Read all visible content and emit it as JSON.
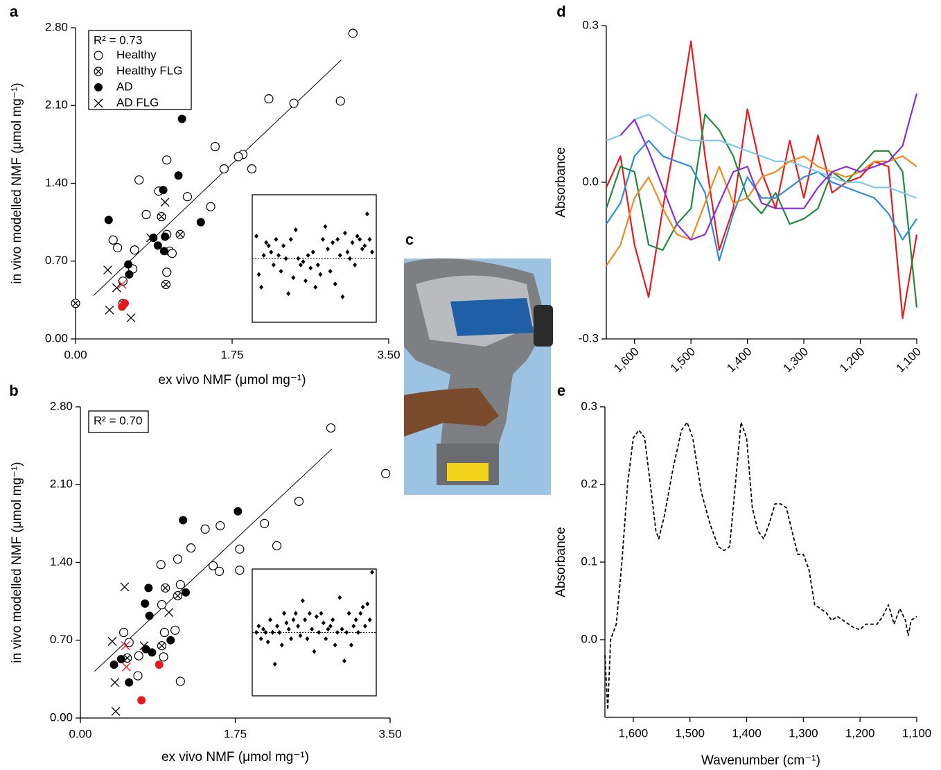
{
  "chart_data": [
    {
      "type": "scatter",
      "panel_label": "a",
      "annotation": "R² = 0.73",
      "legend": true,
      "xlabel": "ex vivo NMF (μmol mg⁻¹)",
      "ylabel": "in vivo modelled NMF (μmol mg⁻¹)",
      "xlim": [
        0,
        3.5
      ],
      "ylim": [
        0,
        2.8
      ],
      "xticks": [
        {
          "value": 0,
          "label": "0.00"
        },
        1.75,
        {
          "value": 3.5,
          "label": "3.50"
        }
      ],
      "yticks": [
        {
          "value": 0,
          "label": "0.00"
        },
        {
          "value": 0.7,
          "label": "0.70"
        },
        {
          "value": 1.4,
          "label": "1.40"
        },
        {
          "value": 2.1,
          "label": "2.10"
        },
        {
          "value": 2.8,
          "label": "2.80"
        }
      ],
      "series": [
        {
          "name": "Healthy",
          "marker": "open-circle",
          "color": "#000000",
          "x": [
            3.1,
            2.16,
            2.44,
            2.96,
            1.56,
            1.87,
            1.82,
            1.66,
            1.97,
            1.02,
            0.71,
            0.93,
            1.25,
            1.51,
            0.79,
            0.42,
            0.47,
            0.66,
            1.02,
            1.05,
            1.08,
            0.64,
            1.02,
            0.53
          ],
          "values": [
            2.75,
            2.16,
            2.12,
            2.14,
            1.73,
            1.66,
            1.64,
            1.53,
            1.53,
            1.61,
            1.43,
            1.33,
            1.28,
            1.19,
            1.12,
            0.89,
            0.82,
            0.8,
            0.94,
            0.79,
            0.77,
            0.63,
            0.6,
            0.52
          ]
        },
        {
          "name": "Healthy FLG",
          "marker": "circle-x",
          "color": "#000000",
          "x": [
            0.0,
            0.96,
            1.17,
            1.01,
            0.53
          ],
          "values": [
            0.32,
            1.1,
            0.94,
            0.49,
            0.32
          ]
        },
        {
          "name": "AD",
          "marker": "filled-circle",
          "color": "#000000",
          "x": [
            1.19,
            1.15,
            0.37,
            1.4,
            0.98,
            0.87,
            0.92,
            1.0,
            0.99,
            0.59,
            0.6
          ],
          "values": [
            1.98,
            1.47,
            1.07,
            1.05,
            1.34,
            0.91,
            0.84,
            0.92,
            0.79,
            0.67,
            0.58
          ]
        },
        {
          "name": "AD FLG",
          "marker": "x",
          "color": "#000000",
          "x": [
            0.36,
            1.0,
            0.84,
            0.46,
            0.38,
            0.62
          ],
          "values": [
            0.62,
            1.23,
            0.91,
            0.46,
            0.26,
            0.19
          ]
        },
        {
          "marker": "filled-circle",
          "color": "#e8191c",
          "x": [
            0.52,
            0.55
          ],
          "values": [
            0.29,
            0.32
          ]
        },
        {
          "marker": "x",
          "color": "#e8191c",
          "x": [
            0.52
          ],
          "values": [
            0.49
          ]
        }
      ],
      "fit_line": {
        "x": [
          0.2,
          2.97
        ],
        "values": [
          0.39,
          2.51
        ]
      },
      "inset": {
        "ylim": [
          -1,
          1
        ],
        "reference": 0,
        "values": [
          0.35,
          -0.25,
          -0.45,
          0.05,
          0.25,
          0.2,
          0.1,
          -0.1,
          0.3,
          0.05,
          -0.2,
          0.2,
          0.0,
          -0.55,
          0.3,
          -0.3,
          0.45,
          0.0,
          -0.1,
          -0.05,
          -0.35,
          0.05,
          -0.15,
          0.1,
          -0.45,
          -0.1,
          -0.25,
          0.3,
          0.5,
          0.15,
          -0.2,
          0.25,
          -0.4,
          0.3,
          0.05,
          -0.6,
          0.4,
          0.1,
          0.0,
          0.25,
          -0.1,
          0.35,
          0.3,
          0.15,
          0.2,
          0.7,
          0.3,
          0.1
        ]
      }
    },
    {
      "type": "scatter",
      "panel_label": "b",
      "annotation": "R² = 0.70",
      "legend": false,
      "xlabel": "ex vivo NMF (μmol mg⁻¹)",
      "ylabel": "in vivo modelled NMF (μmol mg⁻¹)",
      "xlim": [
        0,
        3.5
      ],
      "ylim": [
        0,
        2.8
      ],
      "xticks": [
        {
          "value": 0,
          "label": "0.00"
        },
        1.75,
        {
          "value": 3.5,
          "label": "3.50"
        }
      ],
      "yticks": [
        {
          "value": 0,
          "label": "0.00"
        },
        {
          "value": 0.7,
          "label": "0.70"
        },
        {
          "value": 1.4,
          "label": "1.40"
        },
        {
          "value": 2.1,
          "label": "2.10"
        },
        {
          "value": 2.8,
          "label": "2.80"
        }
      ],
      "series": [
        {
          "marker": "open-circle",
          "color": "#000000",
          "x": [
            2.83,
            3.45,
            2.47,
            2.08,
            1.41,
            1.58,
            1.8,
            2.22,
            1.25,
            1.1,
            0.91,
            1.5,
            1.57,
            1.8,
            1.13,
            0.92,
            1.07,
            0.95,
            0.49,
            0.55,
            0.66,
            0.94,
            0.65,
            1.13
          ],
          "values": [
            2.61,
            2.2,
            1.95,
            1.75,
            1.7,
            1.73,
            1.52,
            1.55,
            1.53,
            1.43,
            1.38,
            1.37,
            1.32,
            1.33,
            1.2,
            1.02,
            0.79,
            0.77,
            0.77,
            0.68,
            0.56,
            0.55,
            0.38,
            0.33
          ]
        },
        {
          "marker": "circle-x",
          "color": "#000000",
          "x": [
            0.96,
            1.1,
            0.92,
            0.53
          ],
          "values": [
            1.17,
            1.1,
            0.65,
            0.54
          ]
        },
        {
          "marker": "filled-circle",
          "color": "#000000",
          "x": [
            1.16,
            1.78,
            0.77,
            1.19,
            0.78,
            0.73,
            1.02,
            0.74,
            0.81,
            0.46,
            0.38,
            0.55
          ],
          "values": [
            1.78,
            1.86,
            1.17,
            1.13,
            0.92,
            1.03,
            0.7,
            0.62,
            0.59,
            0.53,
            0.48,
            0.32
          ]
        },
        {
          "marker": "x",
          "color": "#000000",
          "x": [
            0.5,
            0.36,
            1.0,
            0.72,
            0.39,
            0.4
          ],
          "values": [
            1.18,
            0.69,
            0.95,
            0.65,
            0.32,
            0.06
          ]
        },
        {
          "marker": "filled-circle",
          "color": "#e8191c",
          "x": [
            0.89,
            0.69
          ],
          "values": [
            0.48,
            0.16
          ]
        },
        {
          "marker": "x",
          "color": "#e8191c",
          "x": [
            0.51,
            0.52
          ],
          "values": [
            0.65,
            0.46
          ]
        }
      ],
      "fit_line": {
        "x": [
          0.16,
          2.84
        ],
        "values": [
          0.42,
          2.42
        ]
      },
      "inset": {
        "ylim": [
          -1,
          1
        ],
        "reference": 0,
        "values": [
          0.0,
          0.1,
          -0.1,
          0.05,
          0.0,
          -0.15,
          0.2,
          0.0,
          -0.5,
          0.1,
          0.0,
          -0.2,
          0.3,
          0.15,
          0.05,
          -0.1,
          0.2,
          0.3,
          0.1,
          -0.05,
          0.5,
          0.2,
          -0.1,
          0.3,
          0.05,
          -0.3,
          0.25,
          0.0,
          0.3,
          0.15,
          -0.1,
          0.05,
          0.1,
          0.2,
          -0.2,
          0.0,
          0.55,
          0.05,
          -0.45,
          0.0,
          0.3,
          -0.2,
          0.1,
          0.2,
          0.0,
          0.3,
          0.4,
          0.1,
          0.45,
          0.2,
          0.95
        ]
      }
    },
    {
      "type": "image",
      "panel_label": "c"
    },
    {
      "type": "line",
      "panel_label": "d",
      "ylabel": "Absorbance",
      "rotate_xtick_labels": true,
      "xlim": [
        1650,
        1100
      ],
      "ylim": [
        -0.3,
        0.3
      ],
      "xticks": [
        {
          "value": 1600,
          "label": "1,600"
        },
        {
          "value": 1500,
          "label": "1,500"
        },
        {
          "value": 1400,
          "label": "1,400"
        },
        {
          "value": 1300,
          "label": "1,300"
        },
        {
          "value": 1200,
          "label": "1,200"
        },
        {
          "value": 1100,
          "label": "1,100"
        }
      ],
      "yticks": [
        -0.3,
        {
          "value": 0,
          "label": "0.0"
        },
        0.3
      ],
      "x": [
        1650,
        1625,
        1600,
        1575,
        1550,
        1525,
        1500,
        1475,
        1450,
        1425,
        1400,
        1375,
        1350,
        1325,
        1300,
        1275,
        1250,
        1225,
        1200,
        1175,
        1150,
        1125,
        1100
      ],
      "series": [
        {
          "color": "#e8191c",
          "values": [
            -0.01,
            0.05,
            -0.12,
            -0.22,
            -0.05,
            0.1,
            0.27,
            0.05,
            -0.13,
            -0.05,
            0.14,
            0.02,
            -0.05,
            0.08,
            -0.03,
            0.09,
            -0.02,
            0.0,
            0.01,
            0.04,
            0.03,
            -0.26,
            -0.1
          ]
        },
        {
          "color": "#1f8a3c",
          "values": [
            -0.05,
            0.03,
            0.02,
            -0.12,
            -0.13,
            -0.08,
            -0.05,
            0.13,
            0.1,
            0.05,
            -0.03,
            -0.06,
            -0.02,
            -0.08,
            -0.07,
            -0.05,
            0.02,
            0.0,
            0.03,
            0.06,
            0.06,
            0.02,
            -0.24
          ]
        },
        {
          "color": "#2a8be0",
          "values": [
            -0.08,
            -0.04,
            0.05,
            0.08,
            0.05,
            0.04,
            0.03,
            -0.02,
            -0.15,
            -0.06,
            0.01,
            -0.03,
            -0.03,
            -0.01,
            0.01,
            0.02,
            0.0,
            -0.01,
            -0.02,
            -0.03,
            -0.06,
            -0.11,
            -0.07
          ]
        },
        {
          "color": "#7ec8f0",
          "values": [
            0.08,
            0.09,
            0.12,
            0.13,
            0.11,
            0.09,
            0.08,
            0.08,
            0.08,
            0.07,
            0.06,
            0.05,
            0.04,
            0.04,
            0.03,
            0.02,
            0.01,
            0.0,
            0.0,
            -0.01,
            -0.01,
            -0.02,
            -0.03
          ]
        },
        {
          "color": "#f08a1c",
          "values": [
            -0.16,
            -0.12,
            -0.03,
            0.01,
            -0.05,
            -0.1,
            -0.11,
            -0.04,
            0.03,
            -0.04,
            -0.03,
            0.01,
            0.02,
            0.04,
            0.05,
            0.03,
            0.02,
            0.01,
            0.02,
            0.04,
            0.04,
            0.05,
            0.03
          ]
        },
        {
          "color": "#8a2be2",
          "values": [
            null,
            0.09,
            0.12,
            0.06,
            -0.01,
            -0.08,
            -0.11,
            -0.1,
            -0.04,
            0.02,
            0.03,
            -0.04,
            -0.05,
            -0.05,
            -0.05,
            -0.01,
            0.02,
            0.03,
            0.02,
            0.03,
            0.04,
            0.07,
            0.17
          ]
        }
      ]
    },
    {
      "type": "line",
      "panel_label": "e",
      "ylabel": "Absorbance",
      "xlabel": "Wavenumber (cm⁻¹)",
      "rotate_xtick_labels": false,
      "xlim": [
        1650,
        1100
      ],
      "ylim": [
        -0.1,
        0.3
      ],
      "xticks": [
        {
          "value": 1600,
          "label": "1,600"
        },
        {
          "value": 1500,
          "label": "1,500"
        },
        {
          "value": 1400,
          "label": "1,400"
        },
        {
          "value": 1300,
          "label": "1,300"
        },
        {
          "value": 1200,
          "label": "1,200"
        },
        {
          "value": 1100,
          "label": "1,100"
        }
      ],
      "yticks": [
        {
          "value": 0,
          "label": "0.0"
        },
        0.1,
        0.2,
        0.3
      ],
      "x": [
        1650,
        1645,
        1640,
        1630,
        1620,
        1610,
        1600,
        1590,
        1580,
        1570,
        1560,
        1555,
        1545,
        1530,
        1515,
        1505,
        1495,
        1480,
        1465,
        1450,
        1440,
        1430,
        1420,
        1410,
        1400,
        1390,
        1380,
        1370,
        1360,
        1350,
        1340,
        1330,
        1320,
        1310,
        1300,
        1290,
        1280,
        1270,
        1260,
        1250,
        1240,
        1230,
        1220,
        1210,
        1200,
        1190,
        1180,
        1170,
        1160,
        1150,
        1140,
        1130,
        1120,
        1115,
        1110,
        1100
      ],
      "series": [
        {
          "color": "#000000",
          "dashed": true,
          "values": [
            -0.02,
            -0.09,
            0.0,
            0.02,
            0.1,
            0.2,
            0.26,
            0.27,
            0.26,
            0.2,
            0.14,
            0.13,
            0.16,
            0.22,
            0.27,
            0.28,
            0.26,
            0.19,
            0.15,
            0.12,
            0.115,
            0.12,
            0.2,
            0.28,
            0.26,
            0.17,
            0.14,
            0.13,
            0.15,
            0.175,
            0.175,
            0.17,
            0.14,
            0.11,
            0.11,
            0.09,
            0.045,
            0.04,
            0.035,
            0.025,
            0.03,
            0.025,
            0.02,
            0.015,
            0.013,
            0.02,
            0.02,
            0.02,
            0.03,
            0.045,
            0.02,
            0.04,
            0.025,
            0.005,
            0.025,
            0.03
          ]
        }
      ]
    }
  ]
}
